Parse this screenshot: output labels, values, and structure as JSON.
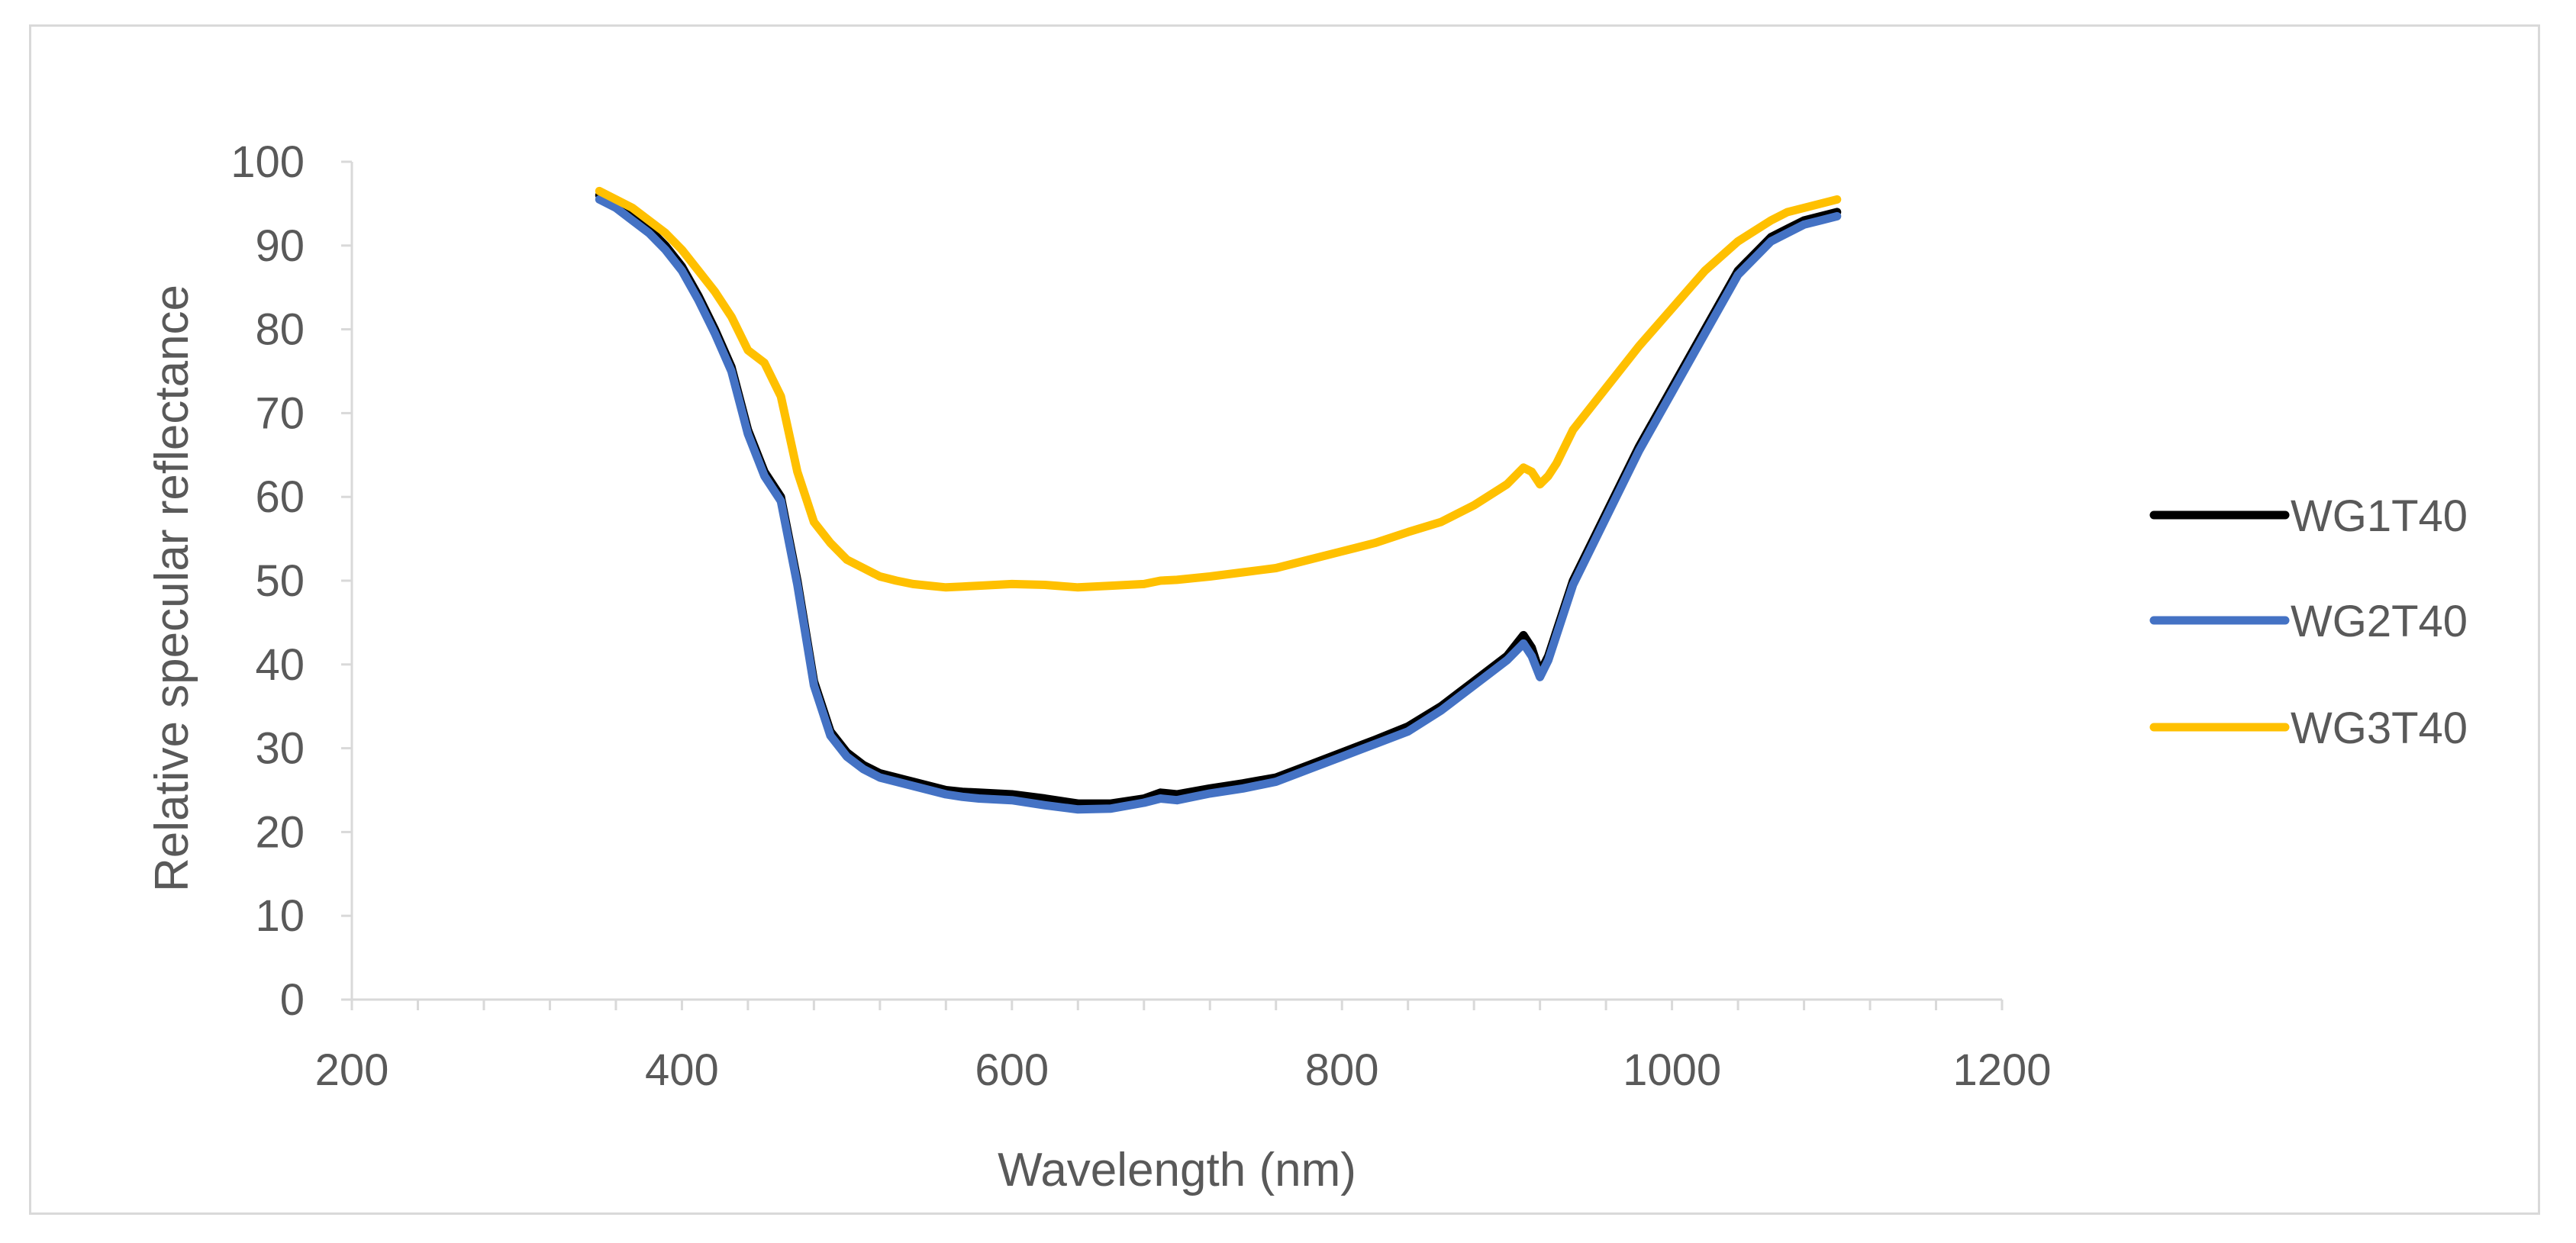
{
  "chart_data": {
    "type": "line",
    "title": "",
    "xlabel": "Wavelength (nm)",
    "ylabel": "Relative specular reflectance",
    "xlim": [
      200,
      1200
    ],
    "ylim": [
      0,
      100
    ],
    "x_major_ticks": [
      200,
      400,
      600,
      800,
      1000,
      1200
    ],
    "x_minor_step": 40,
    "y_ticks": [
      0,
      10,
      20,
      30,
      40,
      50,
      60,
      70,
      80,
      90,
      100
    ],
    "grid": false,
    "legend_position": "right",
    "series": [
      {
        "name": "WG1T40",
        "color": "#000000",
        "x": [
          350,
          360,
          370,
          380,
          390,
          400,
          410,
          420,
          430,
          440,
          450,
          460,
          470,
          480,
          490,
          500,
          510,
          520,
          530,
          540,
          550,
          560,
          570,
          580,
          600,
          620,
          640,
          660,
          680,
          690,
          700,
          720,
          740,
          760,
          780,
          800,
          820,
          840,
          860,
          880,
          900,
          910,
          915,
          920,
          925,
          930,
          940,
          960,
          980,
          1000,
          1020,
          1040,
          1060,
          1070,
          1080,
          1090,
          1100
        ],
        "values": [
          96,
          95,
          93.5,
          92,
          90,
          87.5,
          84,
          80,
          75.5,
          68,
          63,
          60,
          50,
          38,
          32,
          29.5,
          28,
          27,
          26.5,
          26,
          25.5,
          25,
          24.8,
          24.7,
          24.5,
          24,
          23.4,
          23.4,
          24,
          24.7,
          24.5,
          25.2,
          25.8,
          26.5,
          28,
          29.5,
          31,
          32.6,
          35,
          38,
          41,
          43.5,
          42,
          39,
          41,
          44,
          50,
          58,
          66,
          73,
          80,
          87,
          91,
          92,
          93,
          93.5,
          94
        ]
      },
      {
        "name": "WG2T40",
        "color": "#4472c4",
        "x": [
          350,
          360,
          370,
          380,
          390,
          400,
          410,
          420,
          430,
          440,
          450,
          460,
          470,
          480,
          490,
          500,
          510,
          520,
          530,
          540,
          550,
          560,
          570,
          580,
          600,
          620,
          640,
          660,
          680,
          690,
          700,
          720,
          740,
          760,
          780,
          800,
          820,
          840,
          860,
          880,
          900,
          910,
          915,
          920,
          925,
          930,
          940,
          960,
          980,
          1000,
          1020,
          1040,
          1060,
          1070,
          1080,
          1090,
          1100
        ],
        "values": [
          95.5,
          94.5,
          93,
          91.5,
          89.5,
          87,
          83.5,
          79.5,
          75,
          67.5,
          62.5,
          59.5,
          49.5,
          37.5,
          31.5,
          29,
          27.5,
          26.5,
          26,
          25.5,
          25,
          24.5,
          24.2,
          24,
          23.8,
          23.2,
          22.7,
          22.8,
          23.5,
          24,
          23.8,
          24.6,
          25.2,
          26,
          27.5,
          29,
          30.5,
          32,
          34.5,
          37.5,
          40.5,
          42.5,
          41,
          38.5,
          40.5,
          43.5,
          49.5,
          57.5,
          65.5,
          72.5,
          79.5,
          86.5,
          90.5,
          91.5,
          92.5,
          93,
          93.5
        ]
      },
      {
        "name": "WG3T40",
        "color": "#ffc000",
        "x": [
          350,
          360,
          370,
          380,
          390,
          400,
          410,
          420,
          430,
          440,
          450,
          460,
          470,
          480,
          490,
          500,
          510,
          520,
          530,
          540,
          550,
          560,
          570,
          580,
          600,
          620,
          640,
          660,
          680,
          690,
          700,
          720,
          740,
          760,
          780,
          800,
          820,
          840,
          860,
          880,
          900,
          910,
          915,
          920,
          925,
          930,
          940,
          960,
          980,
          1000,
          1020,
          1040,
          1060,
          1070,
          1080,
          1090,
          1100
        ],
        "values": [
          96.5,
          95.5,
          94.5,
          93,
          91.5,
          89.5,
          87,
          84.5,
          81.5,
          77.5,
          76,
          72,
          63,
          57,
          54.5,
          52.5,
          51.5,
          50.5,
          50,
          49.6,
          49.4,
          49.2,
          49.3,
          49.4,
          49.6,
          49.5,
          49.2,
          49.4,
          49.6,
          50,
          50.1,
          50.5,
          51,
          51.5,
          52.5,
          53.5,
          54.5,
          55.8,
          57,
          59,
          61.5,
          63.5,
          63,
          61.5,
          62.5,
          64,
          68,
          73,
          78,
          82.5,
          87,
          90.5,
          93,
          94,
          94.5,
          95,
          95.5
        ]
      }
    ]
  }
}
